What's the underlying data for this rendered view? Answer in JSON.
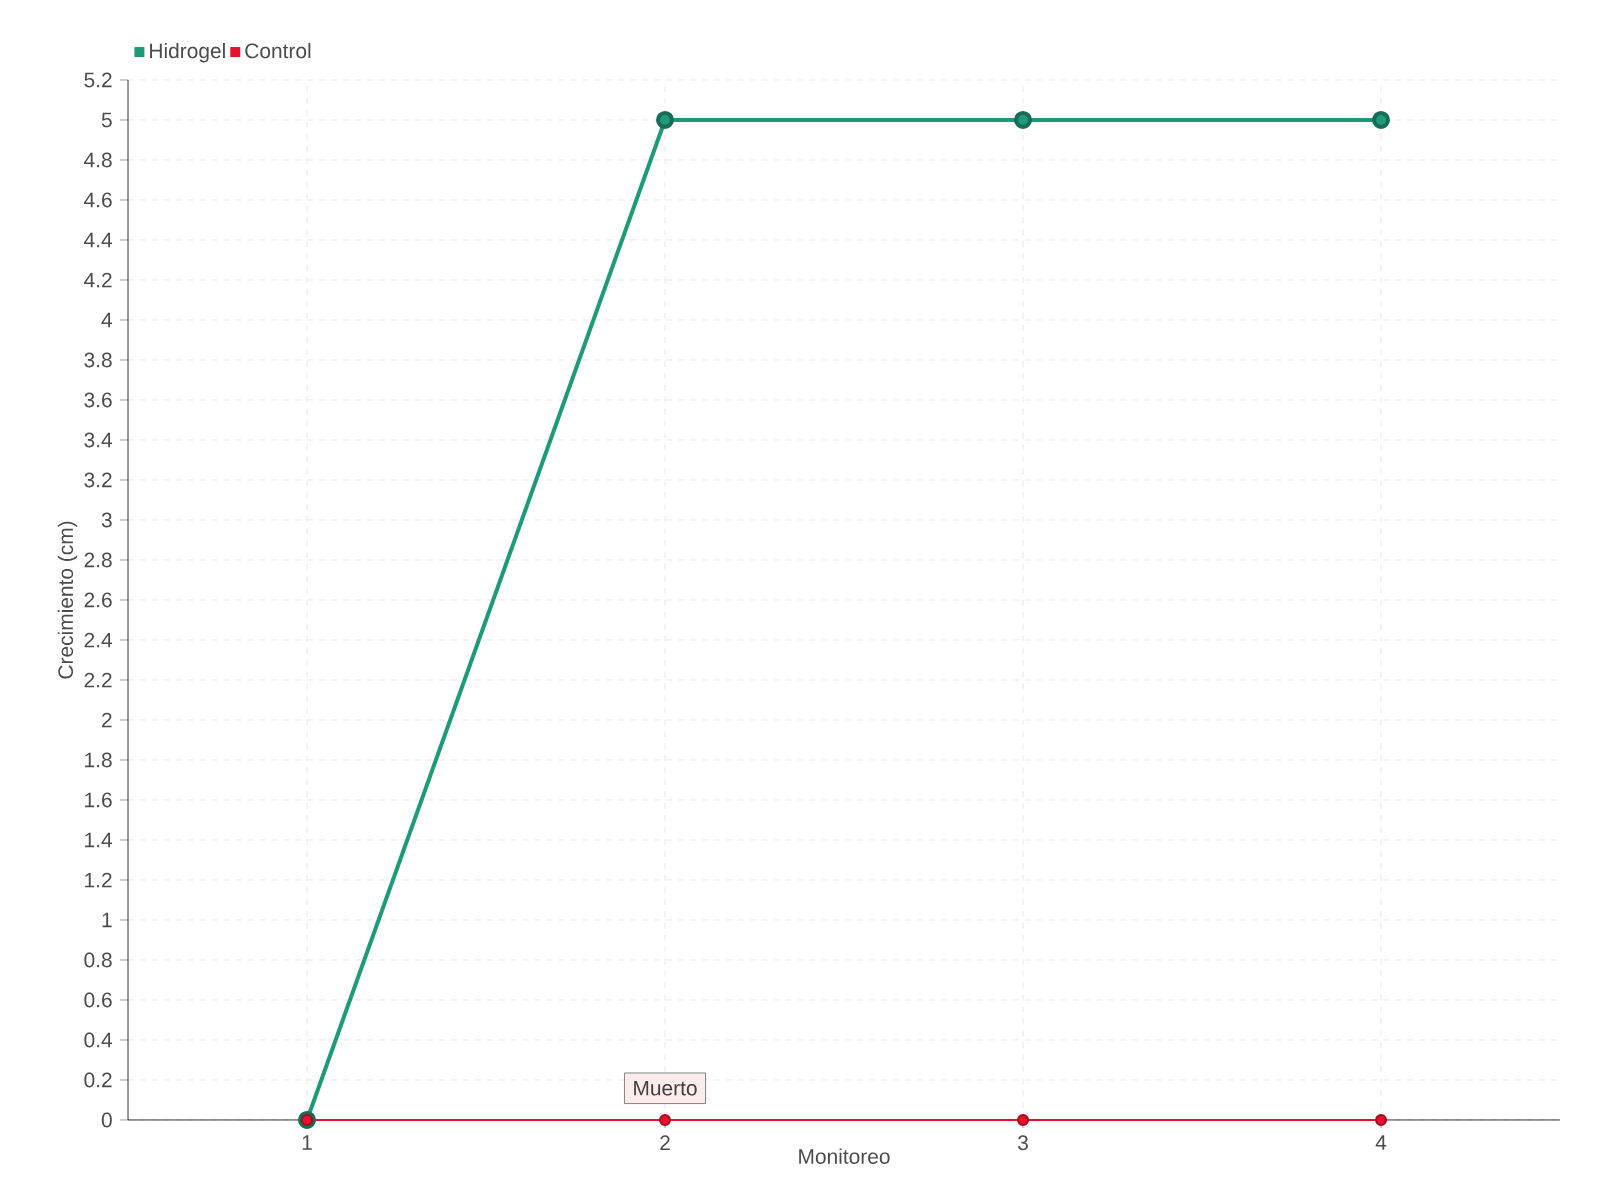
{
  "chart_data": {
    "type": "line",
    "xlabel": "Monitoreo",
    "ylabel": "Crecimiento (cm)",
    "categories": [
      "1",
      "2",
      "3",
      "4"
    ],
    "series": [
      {
        "name": "Hidrogel",
        "color": "#1f9a78",
        "values": [
          0,
          5,
          5,
          5
        ]
      },
      {
        "name": "Control",
        "color": "#e8112d",
        "values": [
          0,
          0,
          0,
          0
        ]
      }
    ],
    "ylim": [
      0,
      5.2
    ],
    "yticks": [
      0,
      0.2,
      0.4,
      0.6,
      0.8,
      1,
      1.2,
      1.4,
      1.6,
      1.8,
      2,
      2.2,
      2.4,
      2.6,
      2.8,
      3,
      3.2,
      3.4,
      3.6,
      3.8,
      4,
      4.2,
      4.4,
      4.6,
      4.8,
      5,
      5.2
    ],
    "grid": true,
    "legend": "top left",
    "marker": "circle",
    "line_style": "solid",
    "annotations": [
      {
        "text": "Muerto",
        "x": "2",
        "y": 0
      }
    ]
  }
}
